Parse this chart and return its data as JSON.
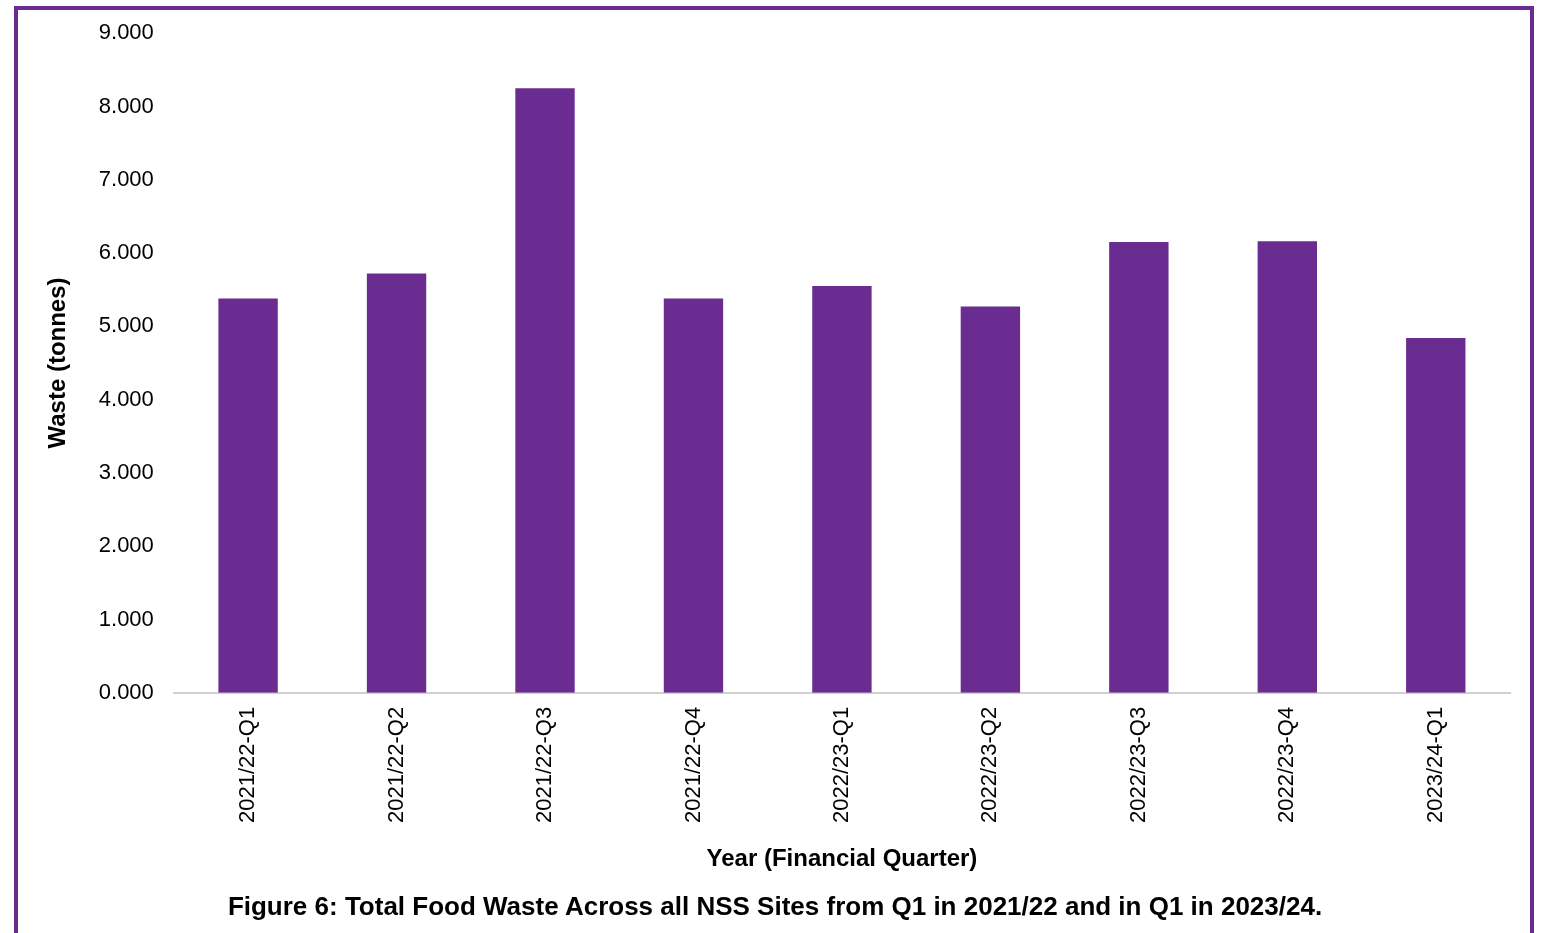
{
  "chart_data": {
    "type": "bar",
    "title": "Figure 6: Total Food Waste Across all NSS Sites from Q1 in 2021/22 and in Q1 in 2023/24.",
    "xlabel": "Year (Financial Quarter)",
    "ylabel": "Waste (tonnes)",
    "categories": [
      "2021/22-Q1",
      "2021/22-Q2",
      "2021/22-Q3",
      "2021/22-Q4",
      "2022/23-Q1",
      "2022/23-Q2",
      "2022/23-Q3",
      "2022/23-Q4",
      "2023/24-Q1"
    ],
    "values": [
      5.38,
      5.72,
      8.25,
      5.38,
      5.55,
      5.27,
      6.15,
      6.16,
      4.84
    ],
    "color": "#6b2c91",
    "ylim": [
      0,
      9
    ],
    "yticks": [
      {
        "value": 0,
        "label": "0.000"
      },
      {
        "value": 1,
        "label": "1.000"
      },
      {
        "value": 2,
        "label": "2.000"
      },
      {
        "value": 3,
        "label": "3.000"
      },
      {
        "value": 4,
        "label": "4.000"
      },
      {
        "value": 5,
        "label": "5.000"
      },
      {
        "value": 6,
        "label": "6.000"
      },
      {
        "value": 7,
        "label": "7.000"
      },
      {
        "value": 8,
        "label": "8.000"
      },
      {
        "value": 9,
        "label": "9.000"
      }
    ],
    "grid": false,
    "legend": false
  }
}
